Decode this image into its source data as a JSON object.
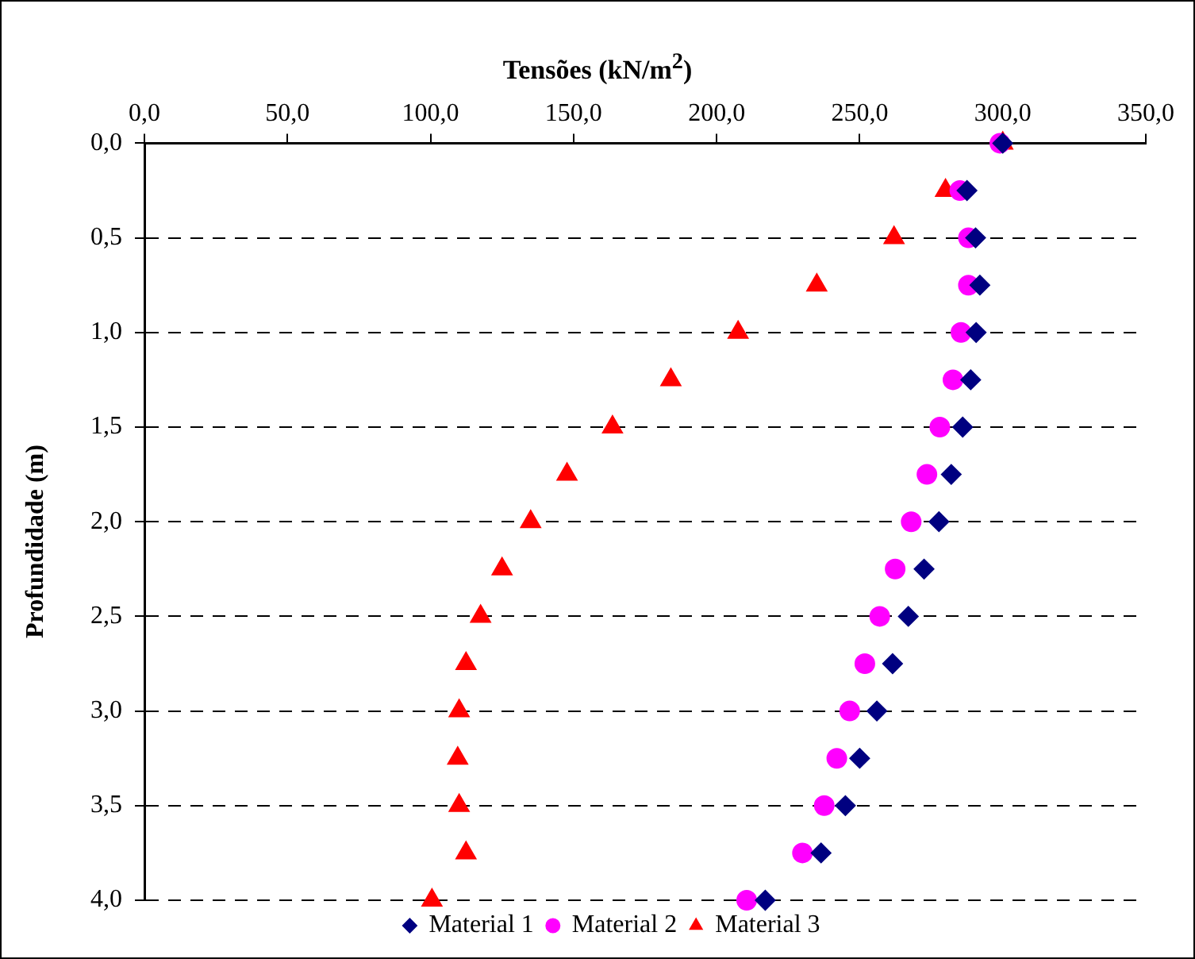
{
  "chart_data": {
    "type": "scatter",
    "xlabel": "Tensões (kN/m$^{2}$)",
    "ylabel": "Profundidade (m)",
    "xlim": [
      0,
      350
    ],
    "xticks": [
      {
        "value": 0,
        "label": "0,0"
      },
      {
        "value": 50,
        "label": "50,0"
      },
      {
        "value": 100,
        "label": "100,0"
      },
      {
        "value": 150,
        "label": "150,0"
      },
      {
        "value": 200,
        "label": "200,0"
      },
      {
        "value": 250,
        "label": "250,0"
      },
      {
        "value": 300,
        "label": "300,0"
      },
      {
        "value": 350,
        "label": "350,0"
      }
    ],
    "ylim": [
      4,
      0
    ],
    "yticks": [
      {
        "value": 0,
        "label": "0,0"
      },
      {
        "value": 0.5,
        "label": "0,5"
      },
      {
        "value": 1,
        "label": "1,0"
      },
      {
        "value": 1.5,
        "label": "1,5"
      },
      {
        "value": 2,
        "label": "2,0"
      },
      {
        "value": 2.5,
        "label": "2,5"
      },
      {
        "value": 3,
        "label": "3,0"
      },
      {
        "value": 3.5,
        "label": "3,5"
      },
      {
        "value": 4,
        "label": "4,0"
      }
    ],
    "grid": "y",
    "line_style": "dashed",
    "legend": "bottom",
    "series": [
      {
        "name": "Material 1",
        "color": "#000080",
        "marker": "diamond",
        "x": [
          300,
          287.5,
          290.5,
          292,
          290.7,
          288.8,
          286,
          282,
          277.7,
          272.5,
          267,
          261.5,
          256,
          250,
          245,
          236.5,
          217
        ],
        "values": [
          0,
          0.25,
          0.5,
          0.75,
          1,
          1.25,
          1.5,
          1.75,
          2,
          2.25,
          2.5,
          2.75,
          3,
          3.25,
          3.5,
          3.75,
          4
        ]
      },
      {
        "name": "Material 2",
        "color": "#ff00ff",
        "marker": "circle",
        "x": [
          299,
          285,
          288,
          288,
          285.4,
          282.6,
          278,
          273.5,
          268,
          262.4,
          257,
          251.8,
          246.5,
          242,
          237.6,
          230,
          210.5
        ],
        "values": [
          0,
          0.25,
          0.5,
          0.75,
          1,
          1.25,
          1.5,
          1.75,
          2,
          2.25,
          2.5,
          2.75,
          3,
          3.25,
          3.5,
          3.75,
          4
        ]
      },
      {
        "name": "Material 3",
        "color": "#ff0000",
        "marker": "triangle",
        "x": [
          300,
          280,
          262,
          235,
          207.5,
          184,
          163.6,
          147.7,
          135,
          125,
          117.5,
          112.4,
          110,
          109.5,
          110,
          112.4,
          100.5
        ],
        "values": [
          0,
          0.25,
          0.5,
          0.75,
          1,
          1.25,
          1.5,
          1.75,
          2,
          2.25,
          2.5,
          2.75,
          3,
          3.25,
          3.5,
          3.75,
          4
        ]
      }
    ]
  }
}
